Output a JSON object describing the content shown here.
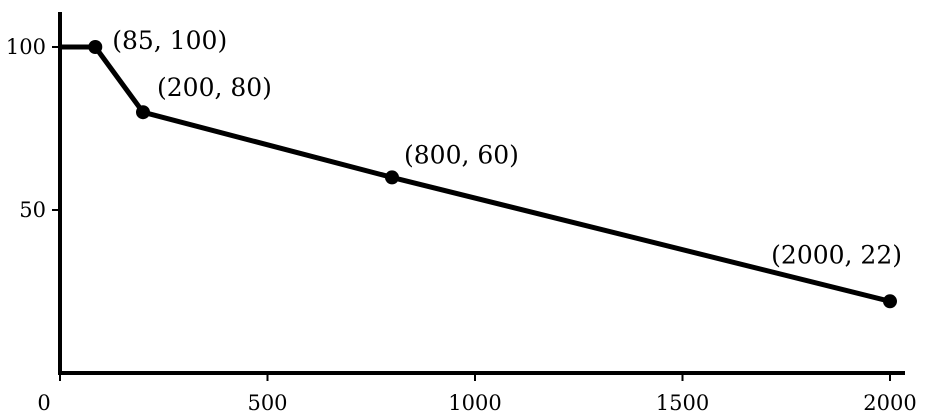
{
  "chart_data": {
    "type": "line",
    "title": "",
    "xlabel": "",
    "ylabel": "",
    "xlim": [
      0,
      2000
    ],
    "ylim": [
      0,
      100
    ],
    "grid": false,
    "x_ticks": [
      {
        "value": 0,
        "label": "0"
      },
      {
        "value": 500,
        "label": "500"
      },
      {
        "value": 1000,
        "label": "1000"
      },
      {
        "value": 1500,
        "label": "1500"
      },
      {
        "value": 2000,
        "label": "2000"
      }
    ],
    "y_ticks": [
      {
        "value": 50,
        "label": "50"
      },
      {
        "value": 100,
        "label": "100"
      }
    ],
    "series": [
      {
        "color": "#000000",
        "x": [
          0,
          85,
          200,
          800,
          2000
        ],
        "y": [
          100,
          100,
          80,
          60,
          22
        ]
      }
    ],
    "marked_points": [
      {
        "x": 85,
        "y": 100,
        "label": "(85, 100)"
      },
      {
        "x": 200,
        "y": 80,
        "label": "(200, 80)"
      },
      {
        "x": 800,
        "y": 60,
        "label": "(800, 60)"
      },
      {
        "x": 2000,
        "y": 22,
        "label": "(2000, 22)"
      }
    ]
  }
}
